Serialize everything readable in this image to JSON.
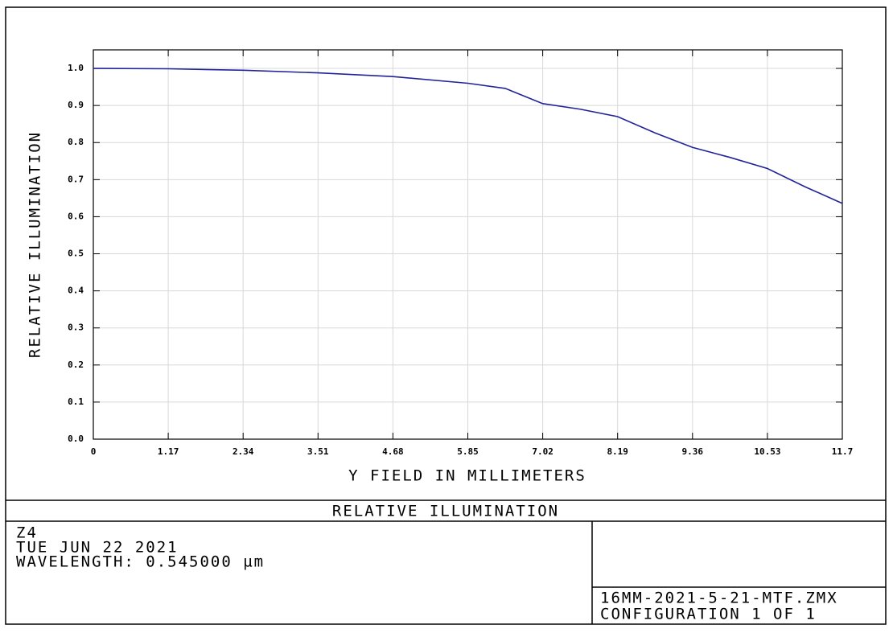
{
  "chart_data": {
    "type": "line",
    "title": "RELATIVE ILLUMINATION",
    "x_label": "Y FIELD IN MILLIMETERS",
    "y_label": "RELATIVE ILLUMINATION",
    "x": [
      0,
      1.17,
      2.34,
      3.51,
      4.68,
      5.85,
      6.435,
      7.02,
      7.605,
      8.19,
      8.775,
      9.36,
      9.945,
      10.53,
      11.115,
      11.7
    ],
    "values": [
      1.0,
      0.999,
      0.995,
      0.988,
      0.978,
      0.96,
      0.946,
      0.905,
      0.89,
      0.87,
      0.826,
      0.787,
      0.76,
      0.73,
      0.681,
      0.636
    ],
    "color": "#22229a",
    "xlim": [
      0,
      11.7
    ],
    "ylim": [
      0,
      1.05
    ],
    "xticks": [
      0,
      1.17,
      2.34,
      3.51,
      4.68,
      5.85,
      7.02,
      8.19,
      9.36,
      10.53,
      11.7
    ],
    "yticks": [
      {
        "value": 0,
        "label": "0.0"
      },
      0.1,
      0.2,
      0.3,
      0.4,
      0.5,
      0.6,
      0.7,
      0.8,
      0.9,
      {
        "value": 1,
        "label": "1.0"
      }
    ],
    "grid": true,
    "annotations": [
      "Z4",
      "TUE JUN 22 2021",
      "WAVELENGTH: 0.545000 µm"
    ],
    "file_info": [
      "16MM-2021-5-21-MTF.ZMX",
      "CONFIGURATION 1 OF 1"
    ]
  }
}
